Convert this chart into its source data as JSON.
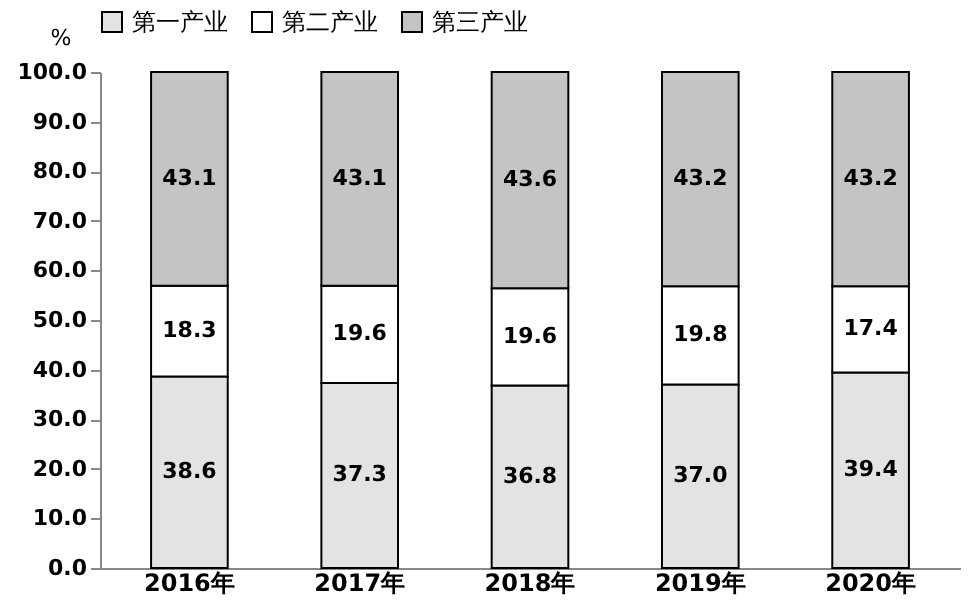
{
  "chart_data": {
    "type": "bar",
    "stacked": true,
    "ylabel": "%",
    "categories": [
      "2016年",
      "2017年",
      "2018年",
      "2019年",
      "2020年"
    ],
    "series": [
      {
        "name": "第一产业",
        "color": "#e3e3e3",
        "values": [
          38.6,
          37.3,
          36.8,
          37.0,
          39.4
        ],
        "value_labels": [
          "38.6",
          "37.3",
          "36.8",
          "37.0",
          "39.4"
        ]
      },
      {
        "name": "第二产业",
        "color": "#ffffff",
        "values": [
          18.3,
          19.6,
          19.6,
          19.8,
          17.4
        ],
        "value_labels": [
          "18.3",
          "19.6",
          "19.6",
          "19.8",
          "17.4"
        ]
      },
      {
        "name": "第三产业",
        "color": "#c4c4c4",
        "values": [
          43.1,
          43.1,
          43.6,
          43.2,
          43.2
        ],
        "value_labels": [
          "43.1",
          "43.1",
          "43.6",
          "43.2",
          "43.2"
        ]
      }
    ],
    "ylim": [
      0,
      100
    ],
    "yticks": [
      {
        "value": 0,
        "label": "0.0"
      },
      {
        "value": 10,
        "label": "10.0"
      },
      {
        "value": 20,
        "label": "20.0"
      },
      {
        "value": 30,
        "label": "30.0"
      },
      {
        "value": 40,
        "label": "40.0"
      },
      {
        "value": 50,
        "label": "50.0"
      },
      {
        "value": 60,
        "label": "60.0"
      },
      {
        "value": 70,
        "label": "70.0"
      },
      {
        "value": 80,
        "label": "80.0"
      },
      {
        "value": 90,
        "label": "90.0"
      },
      {
        "value": 100,
        "label": "100.0"
      }
    ],
    "data_labels": true,
    "grid": false,
    "legend": "top"
  }
}
